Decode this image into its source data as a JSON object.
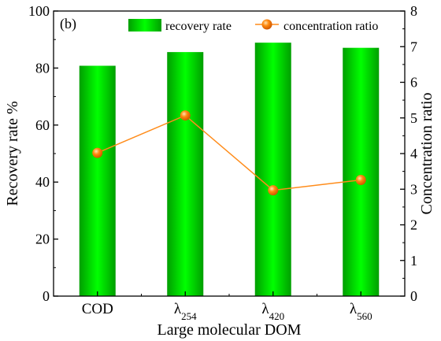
{
  "chart_data": {
    "type": "bar+line",
    "panel_label": "(b)",
    "categories": [
      {
        "base": "COD",
        "sub": ""
      },
      {
        "base": "λ",
        "sub": "254"
      },
      {
        "base": "λ",
        "sub": "420"
      },
      {
        "base": "λ",
        "sub": "560"
      }
    ],
    "series": [
      {
        "name": "recovery rate",
        "kind": "bar",
        "axis": "left",
        "values": [
          80.8,
          85.6,
          88.9,
          87.1
        ]
      },
      {
        "name": "concentration ratio",
        "kind": "line",
        "axis": "right",
        "values": [
          4.02,
          5.07,
          2.97,
          3.26
        ]
      }
    ],
    "xlabel": "Large molecular DOM",
    "ylabel_left": "Recovery rate %",
    "ylabel_right": "Concentration ratio",
    "ylim_left": [
      0,
      100
    ],
    "ylim_right": [
      0,
      8
    ],
    "yticks_left": [
      0,
      20,
      40,
      60,
      80,
      100
    ],
    "yticks_right": [
      0,
      1,
      2,
      3,
      4,
      5,
      6,
      7,
      8
    ],
    "legend_position": "top",
    "grid": false,
    "colors": {
      "bar_edge": "#00a800",
      "bar_center": "#00ff00",
      "line": "#ff8c1a",
      "marker": "#ff7a00"
    }
  }
}
